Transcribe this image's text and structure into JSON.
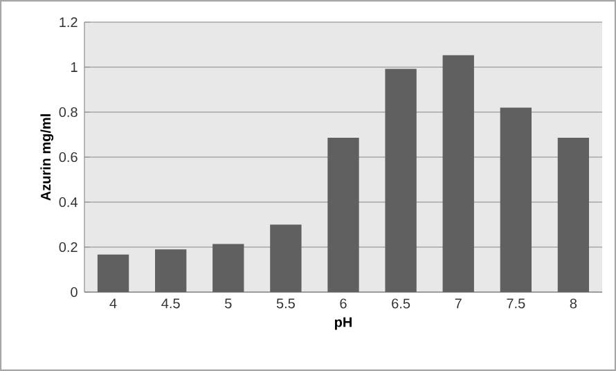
{
  "chart_data": {
    "type": "bar",
    "xlabel": "pH",
    "ylabel": "Azurin mg/ml",
    "categories": [
      "4",
      "4.5",
      "5",
      "5.5",
      "6",
      "6.5",
      "7",
      "7.5",
      "8"
    ],
    "values": [
      0.167,
      0.19,
      0.214,
      0.3,
      0.686,
      0.992,
      1.053,
      0.82,
      0.686
    ],
    "color": "#606060",
    "ylim": [
      0,
      1.2
    ],
    "yticks": [
      0,
      0.2,
      0.4,
      0.6,
      0.8,
      1,
      1.2
    ],
    "grid": "y"
  }
}
